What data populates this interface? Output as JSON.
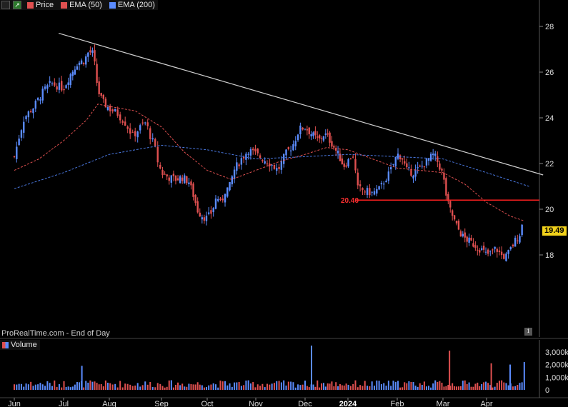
{
  "legend": {
    "items": [
      {
        "label": "Price",
        "color": "#e05050"
      },
      {
        "label": "EMA (50)",
        "color": "#e05050"
      },
      {
        "label": "EMA (200)",
        "color": "#5b8cff"
      }
    ]
  },
  "source_text": "ProRealTime.com - End of Day",
  "volume_label": "Volume",
  "last_price_tag": "19.49",
  "resistance_label": "20.40",
  "colors": {
    "up": "#5b8cff",
    "down": "#e05050",
    "ema50": "#e05050",
    "ema200": "#4a78e0",
    "trendline": "#cfcfcf",
    "level": "#ff2020",
    "price_tag": "#f2d21b"
  },
  "chart_data": {
    "type": "candlestick",
    "x_ticks": [
      "Jun",
      "Jul",
      "Aug",
      "Sep",
      "Oct",
      "Nov",
      "Dec",
      "2024",
      "Feb",
      "Mar",
      "Apr"
    ],
    "y_ticks": [
      18,
      20,
      22,
      24,
      26,
      28
    ],
    "ylim": [
      16.0,
      28.8
    ],
    "volume_ticks": [
      "3,000k",
      "2,000k",
      "1,000k",
      "0"
    ],
    "volume_ylim": [
      0,
      3500
    ],
    "horizontal_level": {
      "value": 20.4,
      "label": "20.40",
      "from_month": 7.15
    },
    "trendline": {
      "from": {
        "month": 0.9,
        "price": 27.7
      },
      "to": {
        "month": 11.2,
        "price": 21.5
      }
    },
    "close_path": [
      [
        0.0,
        22.3
      ],
      [
        0.1,
        23.2
      ],
      [
        0.2,
        24.0
      ],
      [
        0.4,
        24.5
      ],
      [
        0.6,
        25.2
      ],
      [
        0.75,
        25.5
      ],
      [
        1.0,
        25.3
      ],
      [
        1.15,
        25.9
      ],
      [
        1.3,
        26.4
      ],
      [
        1.45,
        26.5
      ],
      [
        1.55,
        26.9
      ],
      [
        1.65,
        26.8
      ],
      [
        1.75,
        25.2
      ],
      [
        1.85,
        24.7
      ],
      [
        2.0,
        24.4
      ],
      [
        2.15,
        24.2
      ],
      [
        2.3,
        23.8
      ],
      [
        2.45,
        23.2
      ],
      [
        2.6,
        23.6
      ],
      [
        2.7,
        23.8
      ],
      [
        2.8,
        23.1
      ],
      [
        2.87,
        22.8
      ],
      [
        2.9,
        22.3
      ],
      [
        3.0,
        21.6
      ],
      [
        3.15,
        21.4
      ],
      [
        3.3,
        21.3
      ],
      [
        3.45,
        21.4
      ],
      [
        3.6,
        21.2
      ],
      [
        3.7,
        20.6
      ],
      [
        3.8,
        19.9
      ],
      [
        3.9,
        19.7
      ],
      [
        4.0,
        19.6
      ],
      [
        4.1,
        19.9
      ],
      [
        4.2,
        20.6
      ],
      [
        4.28,
        20.2
      ],
      [
        4.38,
        20.9
      ],
      [
        4.45,
        20.9
      ],
      [
        4.55,
        21.7
      ],
      [
        4.7,
        22.2
      ],
      [
        4.85,
        22.6
      ],
      [
        5.0,
        22.4
      ],
      [
        5.15,
        22.2
      ],
      [
        5.3,
        22.0
      ],
      [
        5.45,
        21.7
      ],
      [
        5.6,
        22.4
      ],
      [
        5.75,
        22.8
      ],
      [
        5.88,
        23.5
      ],
      [
        6.0,
        23.6
      ],
      [
        6.1,
        23.4
      ],
      [
        6.2,
        23.2
      ],
      [
        6.32,
        23.0
      ],
      [
        6.45,
        23.3
      ],
      [
        6.55,
        23.1
      ],
      [
        6.65,
        22.8
      ],
      [
        6.8,
        22.3
      ],
      [
        6.9,
        21.9
      ],
      [
        7.0,
        22.1
      ],
      [
        7.1,
        22.4
      ],
      [
        7.2,
        20.9
      ],
      [
        7.35,
        20.8
      ],
      [
        7.5,
        20.7
      ],
      [
        7.65,
        20.9
      ],
      [
        7.75,
        21.3
      ],
      [
        7.85,
        21.6
      ],
      [
        8.0,
        22.4
      ],
      [
        8.1,
        22.3
      ],
      [
        8.2,
        21.7
      ],
      [
        8.35,
        21.6
      ],
      [
        8.5,
        21.8
      ],
      [
        8.65,
        22.1
      ],
      [
        8.8,
        22.4
      ],
      [
        8.9,
        22.0
      ],
      [
        9.0,
        21.5
      ],
      [
        9.1,
        20.3
      ],
      [
        9.2,
        19.8
      ],
      [
        9.3,
        19.3
      ],
      [
        9.45,
        18.8
      ],
      [
        9.6,
        18.6
      ],
      [
        9.75,
        18.4
      ],
      [
        9.9,
        18.2
      ],
      [
        10.0,
        18.0
      ],
      [
        10.1,
        18.1
      ],
      [
        10.2,
        18.3
      ],
      [
        10.3,
        18.0
      ],
      [
        10.4,
        17.9
      ],
      [
        10.5,
        18.2
      ],
      [
        10.6,
        18.6
      ],
      [
        10.7,
        18.9
      ],
      [
        10.78,
        19.49
      ]
    ],
    "ema50_path": [
      [
        0.0,
        21.7
      ],
      [
        0.5,
        22.2
      ],
      [
        1.0,
        23.0
      ],
      [
        1.5,
        23.9
      ],
      [
        1.75,
        24.6
      ],
      [
        2.0,
        24.5
      ],
      [
        2.5,
        24.3
      ],
      [
        3.0,
        23.6
      ],
      [
        3.5,
        22.5
      ],
      [
        4.0,
        21.7
      ],
      [
        4.5,
        21.3
      ],
      [
        5.0,
        21.7
      ],
      [
        5.5,
        22.1
      ],
      [
        6.0,
        22.4
      ],
      [
        6.5,
        22.7
      ],
      [
        7.0,
        22.6
      ],
      [
        7.5,
        22.2
      ],
      [
        8.0,
        21.8
      ],
      [
        8.5,
        21.7
      ],
      [
        9.0,
        21.6
      ],
      [
        9.5,
        21.1
      ],
      [
        10.0,
        20.3
      ],
      [
        10.5,
        19.7
      ],
      [
        10.78,
        19.5
      ]
    ],
    "ema200_path": [
      [
        0.0,
        20.9
      ],
      [
        1.0,
        21.6
      ],
      [
        2.0,
        22.4
      ],
      [
        3.0,
        22.8
      ],
      [
        4.0,
        22.6
      ],
      [
        5.0,
        22.2
      ],
      [
        6.0,
        22.3
      ],
      [
        7.0,
        22.4
      ],
      [
        8.0,
        22.3
      ],
      [
        9.0,
        22.2
      ],
      [
        10.0,
        21.6
      ],
      [
        10.9,
        21.0
      ]
    ],
    "volume_spikes": [
      {
        "month": 6.15,
        "value": 3500,
        "dir": "up"
      },
      {
        "month": 9.15,
        "value": 3100,
        "dir": "down"
      },
      {
        "month": 10.8,
        "value": 2200,
        "dir": "up"
      },
      {
        "month": 1.4,
        "value": 1900,
        "dir": "up"
      },
      {
        "month": 10.1,
        "value": 2100,
        "dir": "down"
      },
      {
        "month": 10.5,
        "value": 2000,
        "dir": "up"
      }
    ],
    "volume_typical": 450
  }
}
